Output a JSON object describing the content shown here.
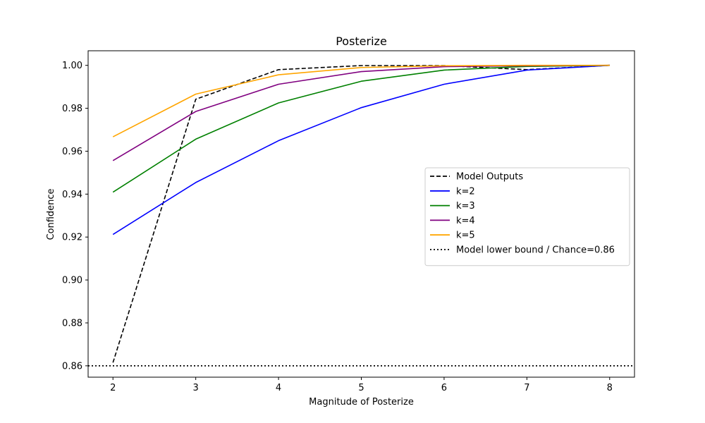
{
  "chart_data": {
    "type": "line",
    "title": "Posterize",
    "xlabel": "Magnitude of Posterize",
    "ylabel": "Confidence",
    "x": [
      2,
      3,
      4,
      5,
      6,
      7,
      8
    ],
    "xlim": [
      1.7,
      8.3
    ],
    "ylim": [
      0.8547,
      1.0068
    ],
    "xticks": [
      2,
      3,
      4,
      5,
      6,
      7,
      8
    ],
    "xtick_labels": [
      "2",
      "3",
      "4",
      "5",
      "6",
      "7",
      "8"
    ],
    "yticks": [
      0.86,
      0.88,
      0.9,
      0.92,
      0.94,
      0.96,
      0.98,
      1.0
    ],
    "ytick_labels": [
      "0.86",
      "0.88",
      "0.90",
      "0.92",
      "0.94",
      "0.96",
      "0.98",
      "1.00"
    ],
    "grid": false,
    "legend_position": "center-right",
    "series": [
      {
        "name": "Model Outputs",
        "color": "#000000",
        "style": "dashed",
        "values": [
          0.8615,
          0.9842,
          0.998,
          0.9999,
          0.9999,
          0.998,
          1.0
        ]
      },
      {
        "name": "k=2",
        "color": "#0000ff",
        "style": "solid",
        "values": [
          0.9212,
          0.9454,
          0.9649,
          0.9803,
          0.9912,
          0.9978,
          1.0
        ]
      },
      {
        "name": "k=3",
        "color": "#008000",
        "style": "solid",
        "values": [
          0.9409,
          0.9656,
          0.9825,
          0.9926,
          0.9978,
          0.9995,
          1.0
        ]
      },
      {
        "name": "k=4",
        "color": "#800080",
        "style": "solid",
        "values": [
          0.9556,
          0.9785,
          0.9912,
          0.9971,
          0.9994,
          0.9998,
          1.0
        ]
      },
      {
        "name": "k=5",
        "color": "#ffa500",
        "style": "solid",
        "values": [
          0.9667,
          0.9866,
          0.9956,
          0.999,
          0.9998,
          1.0,
          1.0
        ]
      }
    ],
    "reference_lines": [
      {
        "name": "Model lower bound / Chance=0.86",
        "value": 0.86,
        "color": "#000000",
        "style": "dotted"
      }
    ]
  }
}
